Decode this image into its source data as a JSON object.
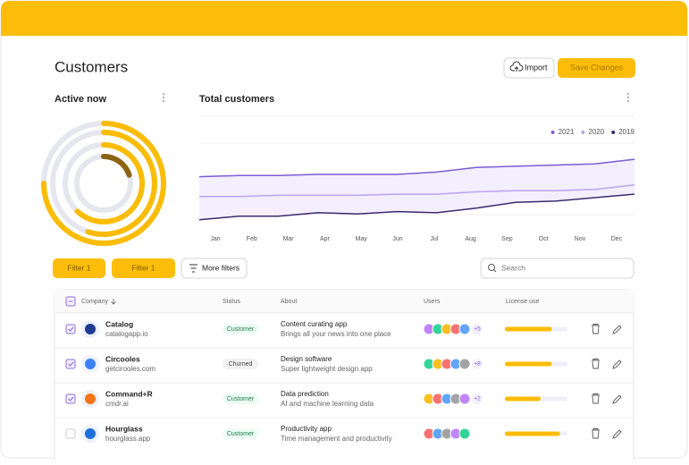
{
  "header": {
    "title": "Customers",
    "import_button": "Import",
    "save_button": "Save Changes"
  },
  "active_now": {
    "title": "Active now",
    "rings": [
      75,
      55,
      62,
      20
    ],
    "colors": [
      "#fbbc05",
      "#fbbc05",
      "#fbbc05",
      "#8a6410"
    ]
  },
  "total_customers": {
    "type": "line",
    "title": "Total customers",
    "categories": [
      "Jan",
      "Feb",
      "Mar",
      "Apr",
      "May",
      "Jun",
      "Jul",
      "Aug",
      "Sep",
      "Oct",
      "Nov",
      "Dec"
    ],
    "series": [
      {
        "name": "2021",
        "color": "#7c5cd6",
        "values": [
          48,
          49,
          49,
          50,
          50,
          50,
          52,
          56,
          57,
          58,
          59,
          63
        ]
      },
      {
        "name": "2020",
        "color": "#b9a4f0",
        "values": [
          31,
          31,
          32,
          32,
          32,
          33,
          33,
          35,
          36,
          36,
          37,
          41
        ]
      },
      {
        "name": "2019",
        "color": "#3b2a6b",
        "values": [
          11,
          14,
          14,
          17,
          16,
          18,
          17,
          21,
          26,
          27,
          30,
          33
        ]
      }
    ],
    "ylim": [
      0,
      100
    ]
  },
  "filters": {
    "buttons": [
      "Filter 1",
      "Filter 1"
    ],
    "more": "More filters",
    "search": "Search"
  },
  "table": {
    "columns": [
      "Company",
      "Status",
      "About",
      "Users",
      "License use"
    ],
    "rows": [
      {
        "checked": true,
        "name": "Catalog",
        "domain": "catalogapp.io",
        "status": "Customer",
        "about": "Content curating app",
        "about_sub": "Brings all your news into one place",
        "extra_users": "+5",
        "license": 75
      },
      {
        "checked": true,
        "name": "Circooles",
        "domain": "getcirooles.com",
        "status": "Churned",
        "about": "Design software",
        "about_sub": "Super lightweight design app",
        "extra_users": "+8",
        "license": 75
      },
      {
        "checked": true,
        "name": "Command+R",
        "domain": "cmdr.ai",
        "status": "Customer",
        "about": "Data prediction",
        "about_sub": "AI and machine learning data",
        "extra_users": "+2",
        "license": 57
      },
      {
        "checked": false,
        "name": "Hourglass",
        "domain": "hourglass.app",
        "status": "Customer",
        "about": "Productivity app",
        "about_sub": "Time management and productivity",
        "license": 88
      }
    ]
  }
}
